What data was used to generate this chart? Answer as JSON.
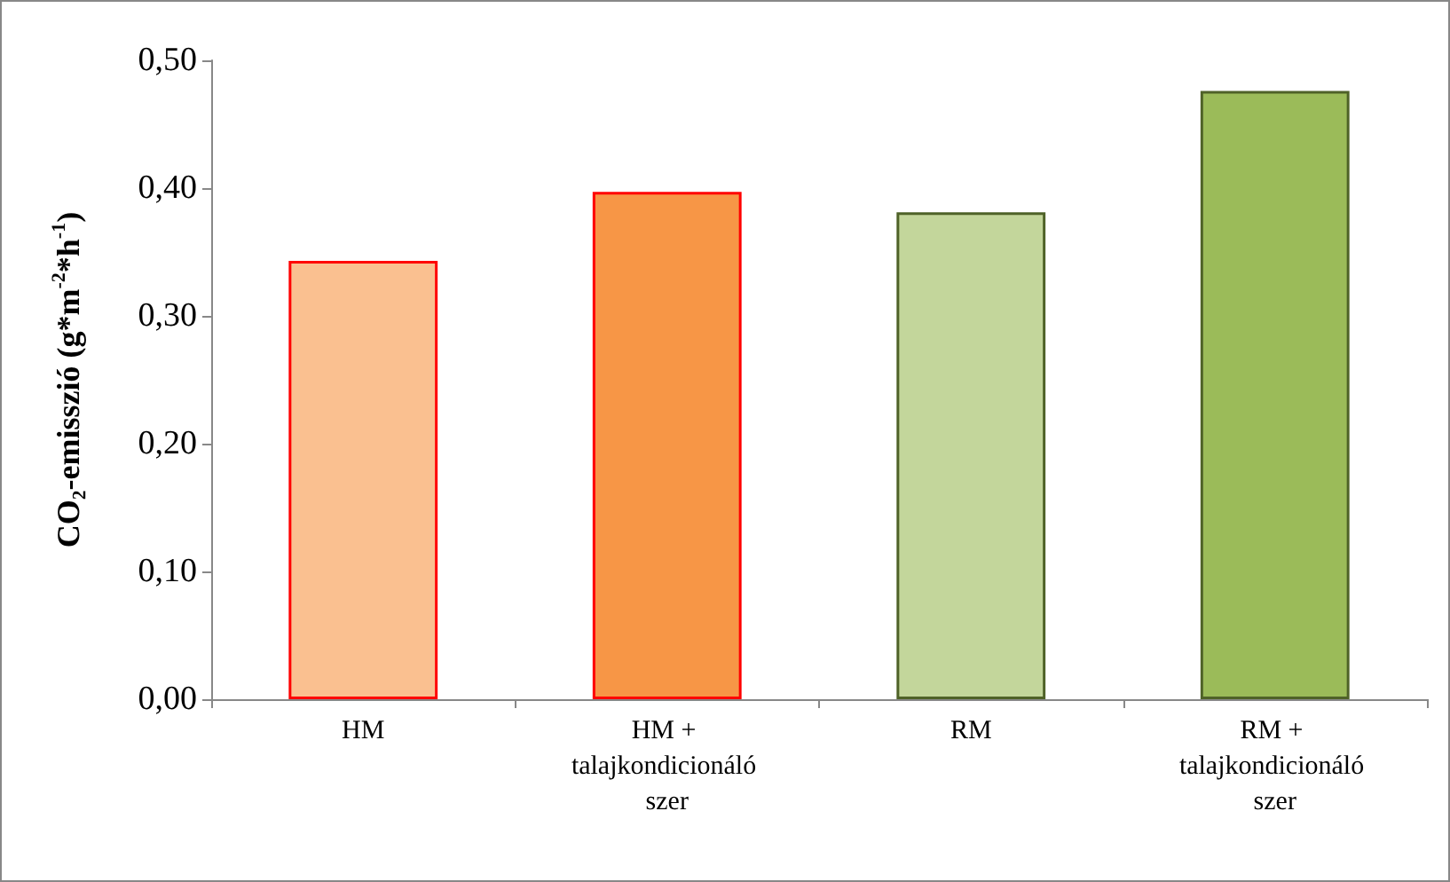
{
  "chart_data": {
    "type": "bar",
    "ylabel": "CO₂-emisszió (g*m$^{-2}$*h$^{-1}$)",
    "categories": [
      "HM",
      "HM + talajkondicionáló szer",
      "RM",
      "RM + talajkondicionáló szer"
    ],
    "values": [
      0.343,
      0.397,
      0.381,
      0.476
    ],
    "colors": [
      "#fac090",
      "#f79646",
      "#c3d69b",
      "#9bbb59"
    ],
    "ylim": [
      0,
      0.5
    ],
    "yticks": [
      {
        "value": 0,
        "label": "0,00"
      },
      {
        "value": 0.1,
        "label": "0,10"
      },
      {
        "value": 0.2,
        "label": "0,20"
      },
      {
        "value": 0.3,
        "label": "0,30"
      },
      {
        "value": 0.4,
        "label": "0,40"
      },
      {
        "value": 0.5,
        "label": "0,50"
      }
    ],
    "grid": false
  }
}
